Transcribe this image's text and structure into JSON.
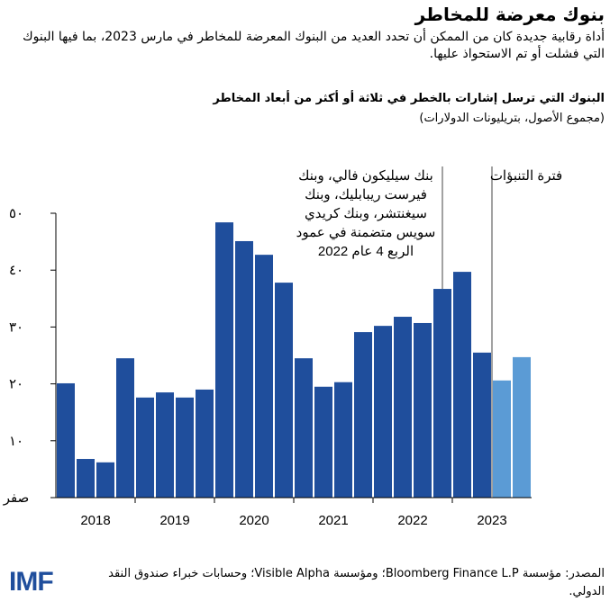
{
  "chart_data": {
    "type": "bar",
    "title": "بنوك معرضة للمخاطر",
    "subtitle": "أداة رقابية جديدة كان من الممكن أن تحدد العديد من البنوك المعرضة للمخاطر في مارس 2023، بما فيها البنوك التي فشلت أو تم الاستحواذ عليها.",
    "chart_title": "البنوك التي ترسل إشارات بالخطر في ثلاثة أو أكثر من أبعاد المخاطر",
    "chart_subtitle": "(مجموع الأصول، بتريليونات الدولارات)",
    "groups": [
      "2018",
      "2019",
      "2020",
      "2021",
      "2022",
      "2023"
    ],
    "series": [
      {
        "color": "#1f4e9c",
        "values": [
          20.1,
          6.8,
          6.2,
          24.5,
          17.6,
          18.5,
          17.6,
          19,
          48.4,
          45.1,
          42.7,
          37.8,
          24.5,
          19.5,
          20.3,
          29.1,
          30.2,
          31.8,
          30.7,
          36.7,
          39.7,
          25.5,
          null,
          null
        ]
      },
      {
        "color": "#5b9bd5",
        "values": [
          null,
          null,
          null,
          null,
          null,
          null,
          null,
          null,
          null,
          null,
          null,
          null,
          null,
          null,
          null,
          null,
          null,
          null,
          null,
          null,
          null,
          null,
          20.6,
          24.7
        ]
      }
    ],
    "ylim": [
      0,
      50
    ],
    "yticks": [
      {
        "value": 0,
        "label": "صفر"
      },
      {
        "value": 10,
        "label": "١٠"
      },
      {
        "value": 20,
        "label": "٢٠"
      },
      {
        "value": 30,
        "label": "٣٠"
      },
      {
        "value": 40,
        "label": "٤٠"
      },
      {
        "value": 50,
        "label": "٥٠"
      }
    ],
    "annotations": [
      {
        "lines": [
          "بنك سيليكون فالي، وبنك",
          "فيرست ريبابليك، وبنك",
          "سيغنتشر، وبنك كريدي",
          "سويس متضمنة في عمود",
          "الربع 4 عام 2022"
        ]
      },
      {
        "lines": [
          "فترة التنبؤات"
        ]
      }
    ],
    "source": "المصدر: مؤسسة Bloomberg Finance L.P؛ ومؤسسة Visible Alpha؛ وحسابات خبراء صندوق النقد الدولي.",
    "logo": "IMF"
  }
}
